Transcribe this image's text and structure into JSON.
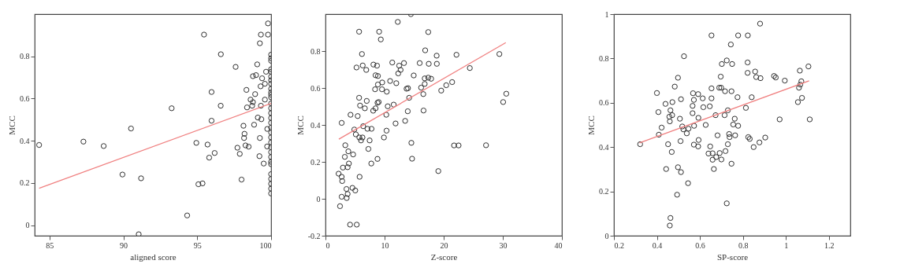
{
  "chart_data": [
    {
      "type": "scatter",
      "xlabel": "aligned score",
      "ylabel": "MCC",
      "grid": false,
      "xlim": [
        84,
        100
      ],
      "ylim": [
        -0.05,
        1.0
      ],
      "xticks": [
        85,
        90,
        95,
        100
      ],
      "yticks": [
        0,
        0.2,
        0.4,
        0.6,
        0.8
      ],
      "series": [
        {
          "marker": "circle",
          "color": "#303030",
          "x": [
            84.3,
            87.3,
            88.67,
            90.52,
            89.94,
            91.2,
            91.04,
            95.46,
            96.6,
            97.6,
            93.27,
            95.97,
            96.59,
            95.97,
            94.94,
            95.7,
            96.18,
            95.81,
            95.08,
            95.36,
            94.32,
            98.0,
            97.72,
            97.88,
            98.13,
            98.2,
            98.17,
            98.27,
            98.48,
            98.33,
            98.37,
            98.61,
            98.77,
            98.72,
            98.85,
            98.92,
            98.77,
            98.98,
            99.06,
            99.24,
            99.31,
            99.39,
            99.29,
            99.31,
            99.1,
            99.34,
            99.24,
            99.21,
            99.5,
            99.73,
            99.74,
            99.66,
            99.79,
            99.79,
            99.58,
            99.58,
            100,
            100,
            100,
            100,
            100,
            100,
            100,
            100,
            100,
            100,
            100,
            100,
            100,
            100,
            100,
            100,
            100,
            100,
            100,
            100,
            100,
            100,
            100,
            100,
            100,
            100,
            100,
            100,
            100,
            100,
            100
          ],
          "values": [
            0.38,
            0.396,
            0.375,
            0.458,
            0.24,
            0.222,
            -0.043,
            0.903,
            0.81,
            0.75,
            0.554,
            0.631,
            0.566,
            0.495,
            0.39,
            0.382,
            0.342,
            0.32,
            0.194,
            0.198,
            0.046,
            0.216,
            0.367,
            0.338,
            0.471,
            0.433,
            0.413,
            0.378,
            0.372,
            0.641,
            0.558,
            0.595,
            0.583,
            0.566,
            0.476,
            0.621,
            0.706,
            0.711,
            0.762,
            0.862,
            0.903,
            0.696,
            0.658,
            0.566,
            0.51,
            0.502,
            0.413,
            0.327,
            0.292,
            0.373,
            0.456,
            0.727,
            0.903,
            0.956,
            0.67,
            0.595,
            0.808,
            0.791,
            0.779,
            0.739,
            0.727,
            0.704,
            0.687,
            0.67,
            0.646,
            0.629,
            0.618,
            0.606,
            0.577,
            0.554,
            0.531,
            0.508,
            0.485,
            0.462,
            0.439,
            0.416,
            0.392,
            0.369,
            0.346,
            0.323,
            0.3,
            0.289,
            0.242,
            0.219,
            0.196,
            0.173,
            0.15
          ]
        },
        {
          "type": "line",
          "color": "#f08080",
          "x": [
            84.3,
            100
          ],
          "values": [
            0.175,
            0.577
          ]
        }
      ]
    },
    {
      "type": "scatter",
      "xlabel": "Z-score",
      "ylabel": "MCC",
      "grid": false,
      "xlim": [
        0,
        40
      ],
      "ylim": [
        -0.2,
        1.0
      ],
      "xticks": [
        0,
        10,
        20,
        30,
        40
      ],
      "yticks": [
        -0.2,
        0,
        0.2,
        0.4,
        0.6,
        0.8
      ],
      "series": [
        {
          "marker": "circle",
          "color": "#303030",
          "x": [
            14.45,
            12.23,
            5.69,
            9.08,
            9.36,
            17.39,
            6.17,
            16.87,
            18.81,
            22.16,
            29.42,
            24.42,
            5.25,
            6.3,
            6.9,
            8.11,
            8.72,
            11.3,
            12.47,
            13.28,
            12.71,
            12.31,
            15.94,
            17.47,
            18.84,
            8.47,
            8.87,
            14.93,
            16.79,
            17.39,
            17.88,
            8.39,
            8.87,
            9.6,
            9.56,
            10.94,
            10.37,
            11.98,
            13.72,
            13.96,
            16.18,
            16.79,
            16.55,
            19.58,
            20.43,
            21.43,
            5.69,
            5.85,
            6.66,
            6.98,
            8.8,
            9.0,
            8.07,
            8.47,
            10.53,
            11.54,
            10.29,
            14.16,
            13.92,
            16.59,
            13.48,
            11.86,
            4.24,
            5.45,
            2.74,
            4.88,
            5.13,
            6.38,
            5.73,
            6.26,
            6.01,
            7.1,
            7.79,
            7.47,
            7.26,
            9.89,
            10.33,
            7.75,
            8.8,
            14.53,
            14.65,
            19.09,
            21.75,
            22.52,
            27.16,
            30.06,
            30.59,
            3.35,
            3.87,
            3.27,
            4.68,
            3.96,
            3.75,
            2.95,
            2.22,
            2.74,
            2.83,
            5.77,
            3.55,
            4.56,
            5.04,
            3.75,
            2.74,
            3.59,
            2.46,
            4.16,
            5.29
          ],
          "values": [
            1.0,
            0.958,
            0.905,
            0.905,
            0.863,
            0.903,
            0.784,
            0.804,
            0.775,
            0.78,
            0.784,
            0.708,
            0.711,
            0.722,
            0.698,
            0.727,
            0.721,
            0.738,
            0.721,
            0.735,
            0.698,
            0.679,
            0.735,
            0.731,
            0.731,
            0.669,
            0.665,
            0.668,
            0.652,
            0.656,
            0.65,
            0.593,
            0.619,
            0.63,
            0.593,
            0.638,
            0.58,
            0.626,
            0.596,
            0.599,
            0.602,
            0.622,
            0.567,
            0.586,
            0.615,
            0.632,
            0.547,
            0.505,
            0.49,
            0.53,
            0.52,
            0.524,
            0.477,
            0.49,
            0.501,
            0.51,
            0.455,
            0.547,
            0.474,
            0.478,
            0.422,
            0.408,
            0.455,
            0.448,
            0.411,
            0.375,
            0.349,
            0.393,
            0.332,
            0.332,
            0.316,
            0.379,
            0.379,
            0.316,
            0.27,
            0.332,
            0.369,
            0.191,
            0.216,
            0.303,
            0.217,
            0.15,
            0.289,
            0.289,
            0.29,
            0.524,
            0.569,
            0.29,
            0.257,
            0.227,
            0.24,
            0.191,
            0.171,
            0.169,
            0.136,
            0.119,
            0.096,
            0.119,
            0.053,
            0.059,
            0.045,
            0.026,
            0.011,
            0.004,
            -0.04,
            -0.14,
            -0.14
          ]
        },
        {
          "type": "line",
          "color": "#f08080",
          "x": [
            2.26,
            30.51
          ],
          "values": [
            0.323,
            0.846
          ]
        }
      ]
    },
    {
      "type": "scatter",
      "xlabel": "SP-score",
      "ylabel": "MCC",
      "grid": false,
      "xlim": [
        0.2,
        1.3
      ],
      "ylim": [
        0,
        1
      ],
      "xticks": [
        0.2,
        0.4,
        0.6,
        0.8,
        1,
        1.2
      ],
      "yticks": [
        0,
        0.2,
        0.4,
        0.6,
        0.8,
        1
      ],
      "series": [
        {
          "marker": "circle",
          "color": "#303030",
          "x": [
            0.322,
            0.4,
            0.407,
            0.409,
            0.422,
            0.44,
            0.443,
            0.452,
            0.458,
            0.46,
            0.463,
            0.471,
            0.472,
            0.469,
            0.463,
            0.46,
            0.483,
            0.498,
            0.507,
            0.51,
            0.498,
            0.512,
            0.494,
            0.526,
            0.512,
            0.518,
            0.523,
            0.539,
            0.545,
            0.547,
            0.566,
            0.566,
            0.568,
            0.572,
            0.573,
            0.572,
            0.592,
            0.593,
            0.594,
            0.592,
            0.613,
            0.616,
            0.627,
            0.646,
            0.648,
            0.654,
            0.654,
            0.654,
            0.64,
            0.659,
            0.659,
            0.665,
            0.673,
            0.676,
            0.682,
            0.69,
            0.692,
            0.697,
            0.699,
            0.7,
            0.702,
            0.715,
            0.717,
            0.719,
            0.725,
            0.725,
            0.73,
            0.73,
            0.736,
            0.738,
            0.747,
            0.75,
            0.744,
            0.747,
            0.755,
            0.762,
            0.764,
            0.775,
            0.778,
            0.778,
            0.814,
            0.822,
            0.822,
            0.823,
            0.825,
            0.832,
            0.841,
            0.85,
            0.857,
            0.862,
            0.877,
            0.88,
            0.882,
            0.904,
            0.945,
            0.953,
            0.971,
            0.995,
            1.056,
            1.061,
            1.067,
            1.072,
            1.075,
            1.065,
            1.105,
            1.111
          ],
          "values": [
            0.413,
            0.644,
            0.558,
            0.456,
            0.488,
            0.595,
            0.301,
            0.413,
            0.537,
            0.516,
            0.566,
            0.544,
            0.603,
            0.378,
            0.08,
            0.046,
            0.673,
            0.713,
            0.528,
            0.427,
            0.309,
            0.287,
            0.185,
            0.81,
            0.616,
            0.493,
            0.48,
            0.462,
            0.237,
            0.483,
            0.553,
            0.586,
            0.643,
            0.613,
            0.496,
            0.411,
            0.639,
            0.532,
            0.432,
            0.403,
            0.62,
            0.58,
            0.5,
            0.584,
            0.403,
            0.665,
            0.62,
            0.904,
            0.371,
            0.372,
            0.343,
            0.301,
            0.544,
            0.355,
            0.453,
            0.668,
            0.373,
            0.718,
            0.668,
            0.344,
            0.775,
            0.544,
            0.652,
            0.382,
            0.791,
            0.146,
            0.566,
            0.413,
            0.459,
            0.445,
            0.652,
            0.775,
            0.863,
            0.325,
            0.502,
            0.528,
            0.453,
            0.625,
            0.496,
            0.904,
            0.577,
            0.782,
            0.735,
            0.904,
            0.445,
            0.437,
            0.625,
            0.4,
            0.741,
            0.716,
            0.421,
            0.957,
            0.711,
            0.443,
            0.721,
            0.714,
            0.525,
            0.7,
            0.603,
            0.668,
            0.682,
            0.697,
            0.622,
            0.745,
            0.764,
            0.525
          ]
        },
        {
          "type": "line",
          "color": "#f08080",
          "x": [
            0.319,
            1.108
          ],
          "values": [
            0.419,
            0.699
          ]
        }
      ]
    }
  ]
}
